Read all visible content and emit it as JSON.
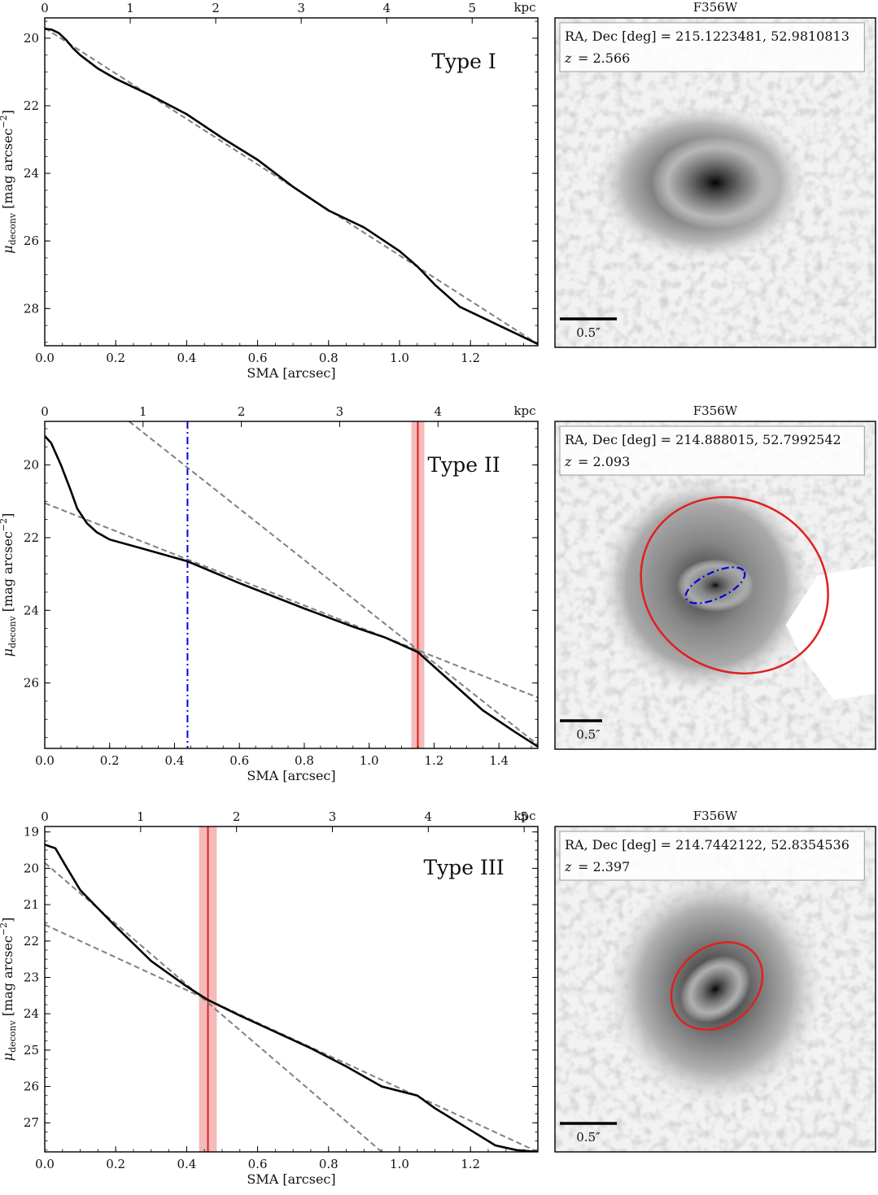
{
  "chart_data": [
    {
      "type": "line",
      "panel_label": "Type I",
      "xlabel": "SMA [arcsec]",
      "ylabel": "μ_deconv [mag arcsec⁻²]",
      "ylabel_parts": {
        "mu": "μ",
        "sub": "deconv",
        "unit": " [mag arcsec",
        "exp": "−2",
        "close": "]"
      },
      "top_unit": "kpc",
      "xlim": [
        0,
        1.39
      ],
      "ylim": [
        29.1,
        19.4
      ],
      "xticks": [
        0,
        0.2,
        0.4,
        0.6,
        0.8,
        1.0,
        1.2
      ],
      "xtick_labels": [
        "0.0",
        "0.2",
        "0.4",
        "0.6",
        "0.8",
        "1.0",
        "1.2"
      ],
      "yticks": [
        20,
        22,
        24,
        26,
        28
      ],
      "ytick_labels": [
        "20",
        "22",
        "24",
        "26",
        "28"
      ],
      "kpc_ticks": [
        0,
        1,
        2,
        3,
        4,
        5
      ],
      "kpc_per_arcsec": 4.15,
      "profile": {
        "x": [
          0,
          0.02,
          0.04,
          0.06,
          0.08,
          0.1,
          0.15,
          0.2,
          0.3,
          0.4,
          0.5,
          0.6,
          0.7,
          0.8,
          0.9,
          1.0,
          1.05,
          1.1,
          1.17,
          1.25,
          1.3,
          1.39
        ],
        "y": [
          19.72,
          19.75,
          19.85,
          20.05,
          20.3,
          20.5,
          20.9,
          21.2,
          21.7,
          22.25,
          22.95,
          23.6,
          24.4,
          25.1,
          25.6,
          26.3,
          26.75,
          27.3,
          27.95,
          28.35,
          28.6,
          29.05
        ]
      },
      "fits": [
        {
          "x": [
            0,
            1.39
          ],
          "y": [
            19.7,
            29.05
          ]
        }
      ],
      "vlines": [],
      "image": {
        "filter": "F356W",
        "coords_label": "RA, Dec [deg] = 215.1223481, 52.9810813",
        "z_label": "z",
        "z_value": "= 2.566",
        "scalebar_label": "0.5″",
        "ellipses": [],
        "mask": false
      }
    },
    {
      "type": "line",
      "panel_label": "Type II",
      "xlabel": "SMA [arcsec]",
      "ylabel": "μ_deconv [mag arcsec⁻²]",
      "ylabel_parts": {
        "mu": "μ",
        "sub": "deconv",
        "unit": " [mag arcsec",
        "exp": "−2",
        "close": "]"
      },
      "top_unit": "kpc",
      "xlim": [
        0,
        1.52
      ],
      "ylim": [
        27.8,
        18.8
      ],
      "xticks": [
        0,
        0.2,
        0.4,
        0.6,
        0.8,
        1.0,
        1.2,
        1.4
      ],
      "xtick_labels": [
        "0.0",
        "0.2",
        "0.4",
        "0.6",
        "0.8",
        "1.0",
        "1.2",
        "1.4"
      ],
      "yticks": [
        20,
        22,
        24,
        26
      ],
      "ytick_labels": [
        "20",
        "22",
        "24",
        "26"
      ],
      "kpc_ticks": [
        0,
        1,
        2,
        3,
        4
      ],
      "kpc_per_arcsec": 3.3,
      "profile": {
        "x": [
          0,
          0.02,
          0.05,
          0.08,
          0.1,
          0.13,
          0.16,
          0.2,
          0.3,
          0.44,
          0.6,
          0.8,
          0.95,
          1.05,
          1.15,
          1.25,
          1.35,
          1.45,
          1.52
        ],
        "y": [
          19.2,
          19.4,
          20.0,
          20.7,
          21.2,
          21.6,
          21.85,
          22.05,
          22.3,
          22.65,
          23.25,
          23.95,
          24.45,
          24.75,
          25.15,
          25.95,
          26.75,
          27.35,
          27.75
        ]
      },
      "fits": [
        {
          "x": [
            0,
            1.52
          ],
          "y": [
            21.05,
            26.4
          ]
        },
        {
          "x": [
            0.26,
            1.52
          ],
          "y": [
            18.8,
            27.7
          ]
        }
      ],
      "vlines": [
        {
          "x": 0.44,
          "style": "dashdot",
          "color": "#0000dd"
        },
        {
          "x": 1.15,
          "style": "solid",
          "color": "#e02020",
          "band": [
            1.13,
            1.17
          ],
          "band_color": "#f4b6b6"
        }
      ],
      "image": {
        "filter": "F356W",
        "coords_label": "RA, Dec [deg] = 214.888015, 52.7992542",
        "z_label": "z",
        "z_value": "= 2.093",
        "scalebar_label": "0.5″",
        "ellipses": [
          {
            "color": "#e02020",
            "style": "solid"
          },
          {
            "color": "#0000dd",
            "style": "dashdot"
          }
        ],
        "mask": true
      }
    },
    {
      "type": "line",
      "panel_label": "Type III",
      "xlabel": "SMA [arcsec]",
      "ylabel": "μ_deconv [mag arcsec⁻²]",
      "ylabel_parts": {
        "mu": "μ",
        "sub": "deconv",
        "unit": " [mag arcsec",
        "exp": "−2",
        "close": "]"
      },
      "top_unit": "kpc",
      "xlim": [
        0,
        1.39
      ],
      "ylim": [
        27.8,
        18.85
      ],
      "xticks": [
        0,
        0.2,
        0.4,
        0.6,
        0.8,
        1.0,
        1.2
      ],
      "xtick_labels": [
        "0.0",
        "0.2",
        "0.4",
        "0.6",
        "0.8",
        "1.0",
        "1.2"
      ],
      "yticks": [
        19,
        20,
        21,
        22,
        23,
        24,
        25,
        26,
        27
      ],
      "ytick_labels": [
        "19",
        "20",
        "21",
        "22",
        "23",
        "24",
        "25",
        "26",
        "27"
      ],
      "kpc_ticks": [
        0,
        1,
        2,
        3,
        4,
        5
      ],
      "kpc_per_arcsec": 3.7,
      "profile": {
        "x": [
          0,
          0.03,
          0.06,
          0.1,
          0.15,
          0.2,
          0.3,
          0.4,
          0.46,
          0.55,
          0.65,
          0.75,
          0.85,
          0.95,
          1.05,
          1.1,
          1.2,
          1.27,
          1.33,
          1.39
        ],
        "y": [
          19.35,
          19.45,
          19.95,
          20.6,
          21.1,
          21.6,
          22.55,
          23.25,
          23.62,
          24.05,
          24.5,
          24.95,
          25.45,
          26.0,
          26.25,
          26.6,
          27.2,
          27.62,
          27.75,
          27.8
        ]
      },
      "fits": [
        {
          "x": [
            0,
            1.39
          ],
          "y": [
            21.55,
            27.8
          ]
        },
        {
          "x": [
            0,
            0.95
          ],
          "y": [
            19.85,
            27.8
          ]
        }
      ],
      "vlines": [
        {
          "x": 0.46,
          "style": "solid",
          "color": "#e02020",
          "band": [
            0.435,
            0.485
          ],
          "band_color": "#f4b6b6"
        }
      ],
      "image": {
        "filter": "F356W",
        "coords_label": "RA, Dec [deg] = 214.7442122, 52.8354536",
        "z_label": "z",
        "z_value": "= 2.397",
        "scalebar_label": "0.5″",
        "ellipses": [
          {
            "color": "#e02020",
            "style": "solid"
          }
        ],
        "mask": false
      }
    }
  ]
}
